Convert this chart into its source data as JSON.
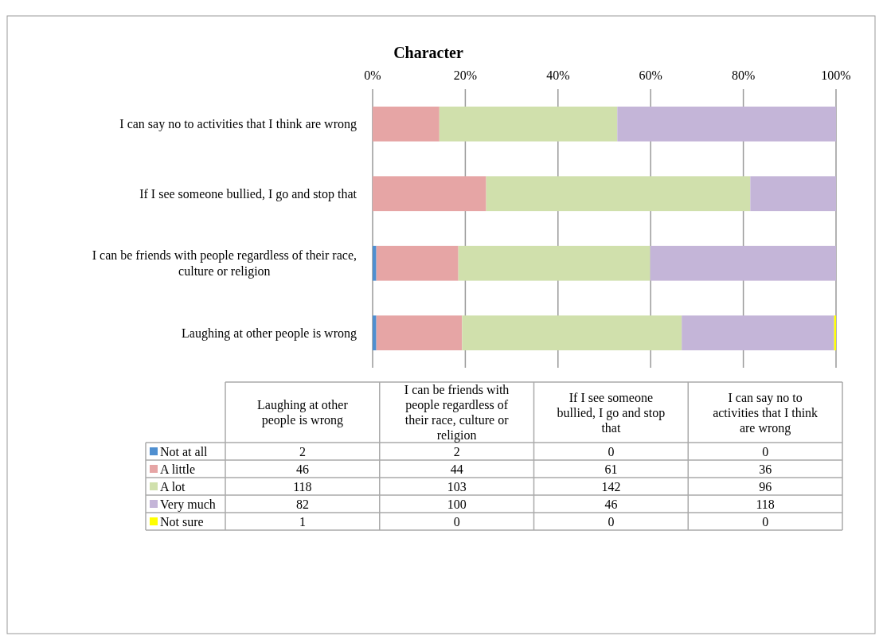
{
  "chart_data": [
    {
      "type": "bar",
      "orientation": "horizontal",
      "stacked": true,
      "title": "Character",
      "categories": [
        "I can say no to activities that I think are wrong",
        "If I see someone bullied, I go and stop that",
        "I can be friends with people regardless of their race, culture or religion",
        "Laughing at other people is wrong"
      ],
      "series": [
        {
          "color": "#4f8fd0",
          "values": [
            0,
            0,
            0.8,
            0.8
          ]
        },
        {
          "color": "#e6a5a5",
          "values": [
            14.4,
            24.5,
            17.7,
            18.5
          ]
        },
        {
          "color": "#d0e0ac",
          "values": [
            38.4,
            57.0,
            41.4,
            47.4
          ]
        },
        {
          "color": "#c4b5d8",
          "values": [
            47.2,
            18.5,
            40.1,
            32.9
          ]
        },
        {
          "color": "#ffff00",
          "values": [
            0,
            0,
            0,
            0.4
          ]
        }
      ],
      "xlim": [
        0,
        100
      ],
      "xticks": [
        {
          "value": 0,
          "label": "0%"
        },
        {
          "value": 20,
          "label": "20%"
        },
        {
          "value": 40,
          "label": "40%"
        },
        {
          "value": 60,
          "label": "60%"
        },
        {
          "value": 80,
          "label": "80%"
        },
        {
          "value": 100,
          "label": "100%"
        }
      ],
      "grid": "x"
    },
    {
      "type": "other",
      "categories": [
        "Laughing at other people is wrong",
        "I can be friends with people regardless of their race, culture or religion",
        "If I see someone bullied, I go and stop that",
        "I can say no to activities that I think are wrong"
      ],
      "series": [
        {
          "name": "Not at all",
          "color": "#4f8fd0",
          "values": [
            2,
            2,
            0,
            0
          ]
        },
        {
          "name": "A little",
          "color": "#e6a5a5",
          "values": [
            46,
            44,
            61,
            36
          ]
        },
        {
          "name": "A lot",
          "color": "#d0e0ac",
          "values": [
            118,
            103,
            142,
            96
          ]
        },
        {
          "name": "Very much",
          "color": "#c4b5d8",
          "values": [
            82,
            100,
            46,
            118
          ]
        },
        {
          "name": "Not sure",
          "color": "#ffff00",
          "values": [
            1,
            0,
            0,
            0
          ]
        }
      ],
      "data_labels": true,
      "legend": "left"
    }
  ]
}
